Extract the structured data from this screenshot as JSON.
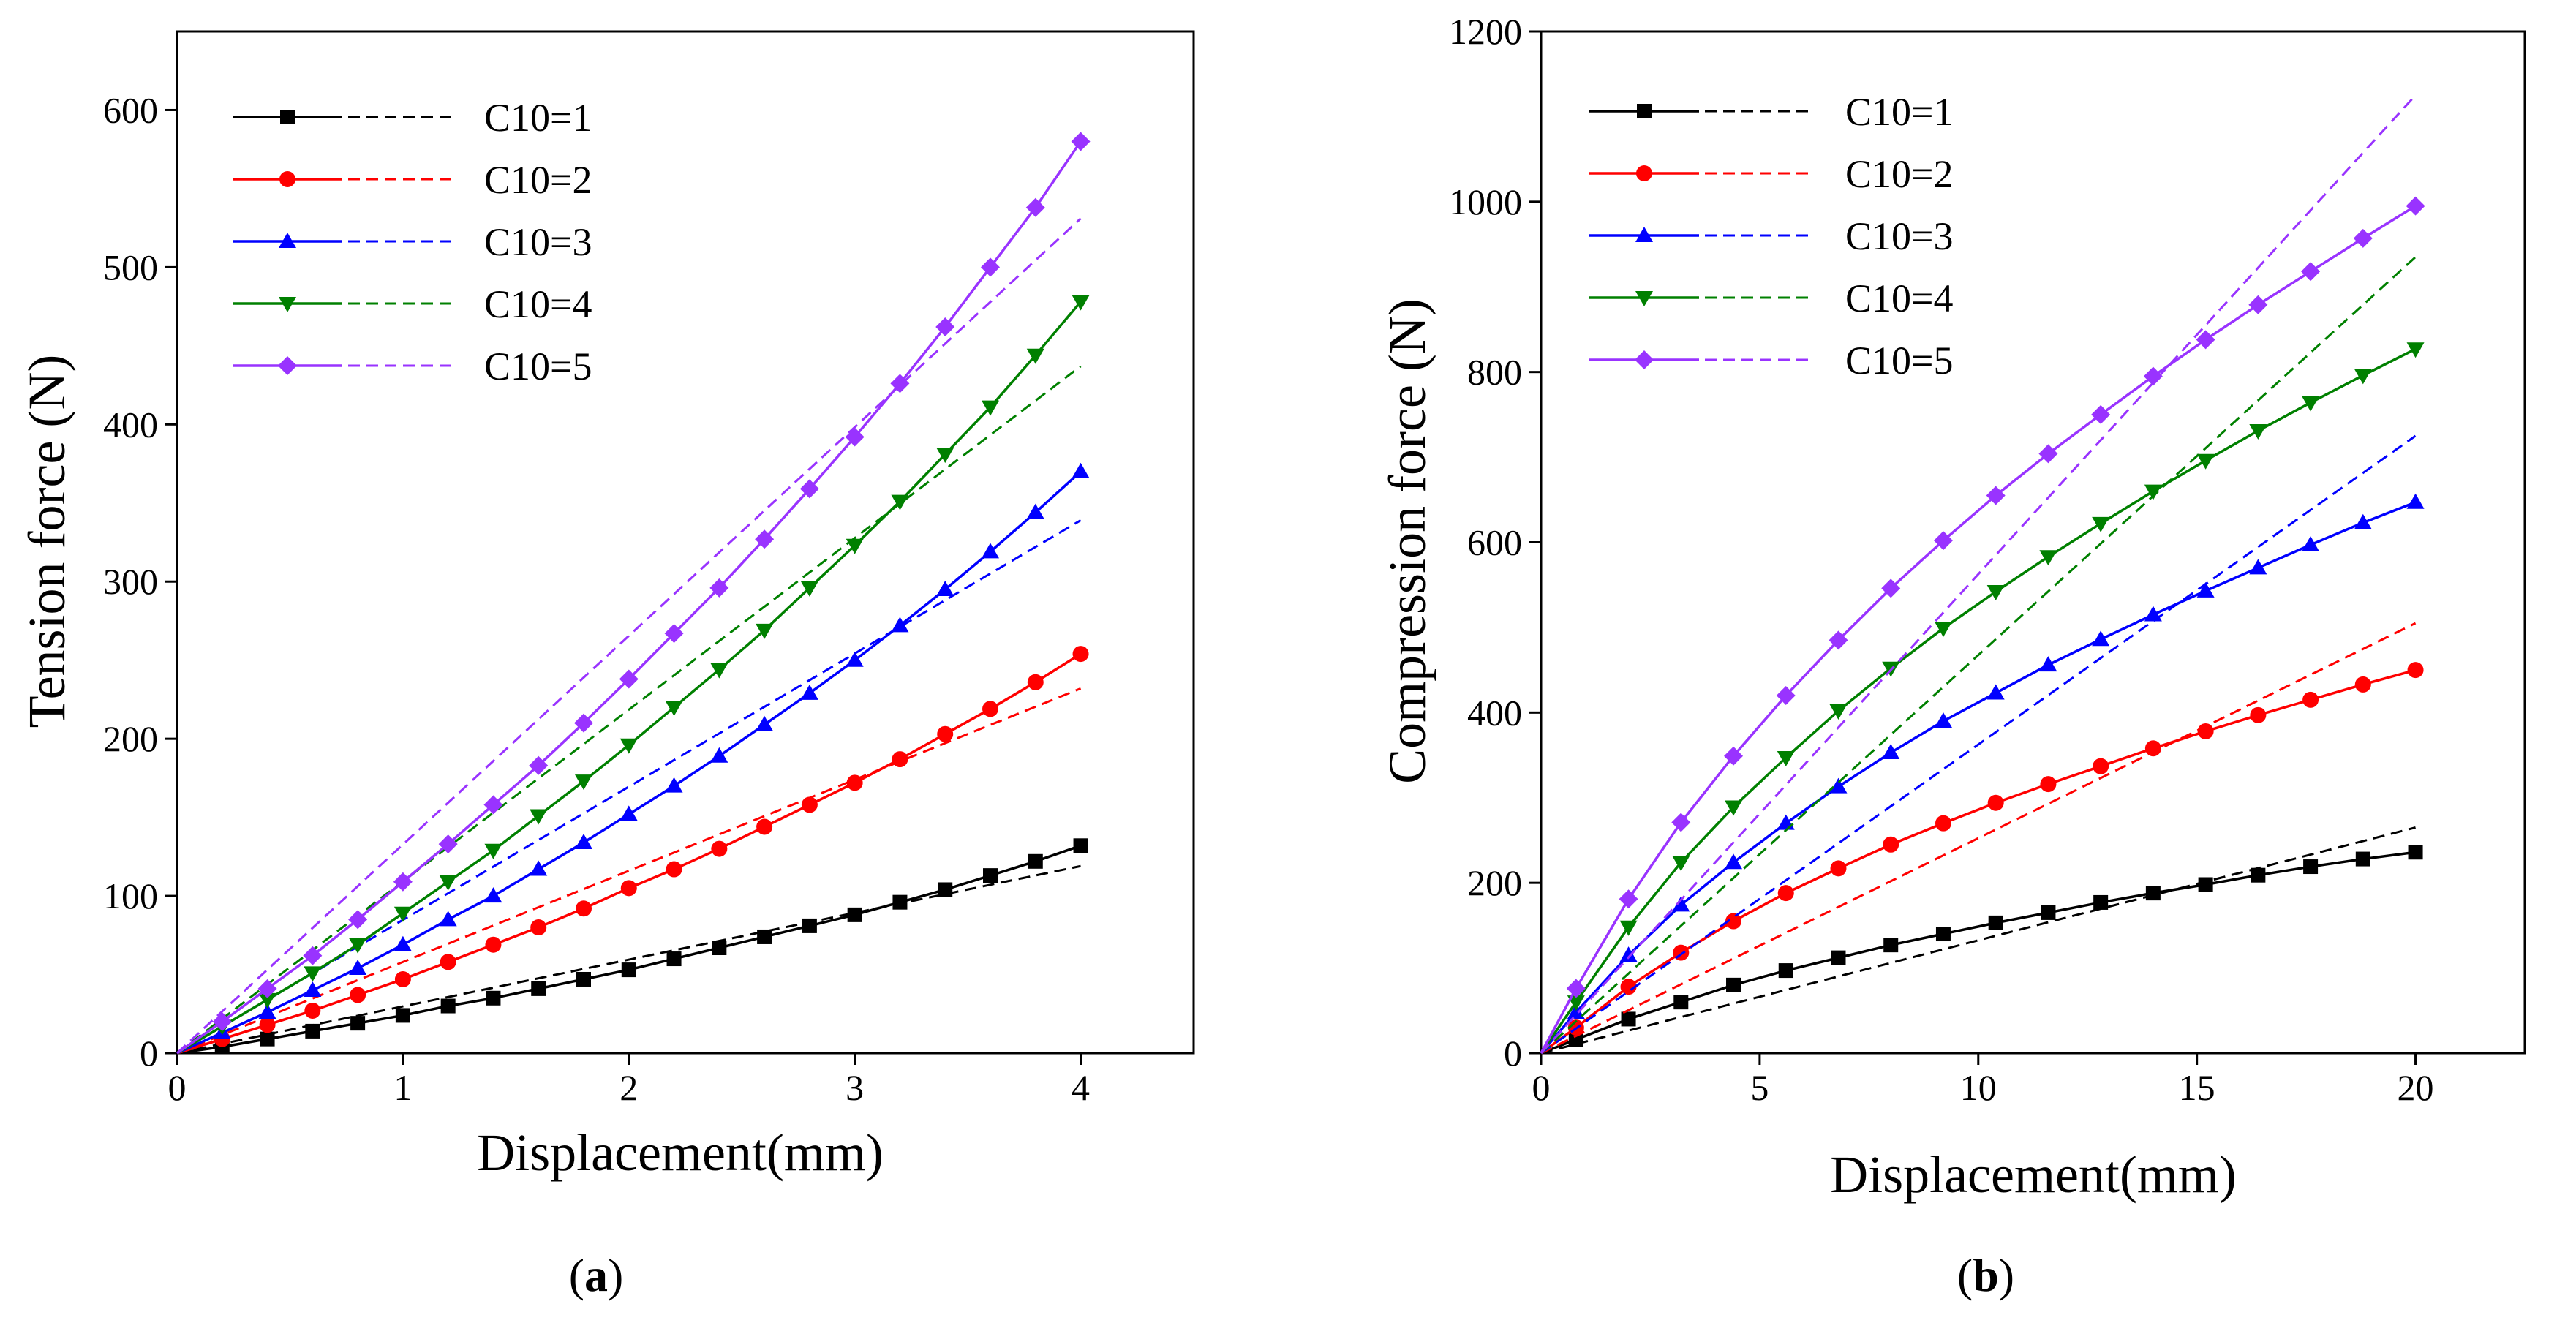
{
  "chart_data": [
    {
      "type": "line",
      "panel_label": "a",
      "xlabel": "Displacement(mm)",
      "ylabel": "Tension force (N)",
      "xlim": [
        0,
        4.5
      ],
      "ylim": [
        0,
        650
      ],
      "xticks": [
        0,
        1,
        2,
        3,
        4
      ],
      "yticks": [
        0,
        100,
        200,
        300,
        400,
        500,
        600
      ],
      "legend_position": "top-left",
      "series": [
        {
          "name": "C10=1",
          "color": "#000000",
          "marker": "square",
          "x": [
            0,
            0.2,
            0.4,
            0.6,
            0.8,
            1.0,
            1.2,
            1.4,
            1.6,
            1.8,
            2.0,
            2.2,
            2.4,
            2.6,
            2.8,
            3.0,
            3.2,
            3.4,
            3.6,
            3.8,
            4.0
          ],
          "y": [
            0,
            4,
            9,
            14,
            19,
            24,
            30,
            35,
            41,
            47,
            53,
            60,
            67,
            74,
            81,
            88,
            96,
            104,
            113,
            122,
            132
          ],
          "fit_y": [
            0,
            119
          ]
        },
        {
          "name": "C10=2",
          "color": "#ff0000",
          "marker": "circle",
          "x": [
            0,
            0.2,
            0.4,
            0.6,
            0.8,
            1.0,
            1.2,
            1.4,
            1.6,
            1.8,
            2.0,
            2.2,
            2.4,
            2.6,
            2.8,
            3.0,
            3.2,
            3.4,
            3.6,
            3.8,
            4.0
          ],
          "y": [
            0,
            9,
            18,
            27,
            37,
            47,
            58,
            69,
            80,
            92,
            105,
            117,
            130,
            144,
            158,
            172,
            187,
            203,
            219,
            236,
            254
          ],
          "fit_y": [
            0,
            232
          ]
        },
        {
          "name": "C10=3",
          "color": "#0000ff",
          "marker": "triangle-up",
          "x": [
            0,
            0.2,
            0.4,
            0.6,
            0.8,
            1.0,
            1.2,
            1.4,
            1.6,
            1.8,
            2.0,
            2.2,
            2.4,
            2.6,
            2.8,
            3.0,
            3.2,
            3.4,
            3.6,
            3.8,
            4.0
          ],
          "y": [
            0,
            13,
            26,
            40,
            54,
            69,
            85,
            100,
            117,
            134,
            152,
            170,
            189,
            209,
            229,
            250,
            272,
            295,
            319,
            344,
            370
          ],
          "fit_y": [
            0,
            339
          ]
        },
        {
          "name": "C10=4",
          "color": "#008000",
          "marker": "triangle-down",
          "x": [
            0,
            0.2,
            0.4,
            0.6,
            0.8,
            1.0,
            1.2,
            1.4,
            1.6,
            1.8,
            2.0,
            2.2,
            2.4,
            2.6,
            2.8,
            3.0,
            3.2,
            3.4,
            3.6,
            3.8,
            4.0
          ],
          "y": [
            0,
            17,
            34,
            51,
            69,
            89,
            109,
            129,
            151,
            173,
            196,
            220,
            244,
            269,
            296,
            323,
            351,
            381,
            411,
            444,
            478
          ],
          "fit_y": [
            0,
            437
          ]
        },
        {
          "name": "C10=5",
          "color": "#9933ff",
          "marker": "diamond",
          "x": [
            0,
            0.2,
            0.4,
            0.6,
            0.8,
            1.0,
            1.2,
            1.4,
            1.6,
            1.8,
            2.0,
            2.2,
            2.4,
            2.6,
            2.8,
            3.0,
            3.2,
            3.4,
            3.6,
            3.8,
            4.0
          ],
          "y": [
            0,
            20,
            41,
            62,
            85,
            109,
            133,
            158,
            183,
            210,
            238,
            267,
            296,
            327,
            359,
            392,
            426,
            462,
            500,
            538,
            580
          ],
          "fit_y": [
            0,
            531
          ]
        }
      ]
    },
    {
      "type": "line",
      "panel_label": "b",
      "xlabel": "Displacement(mm)",
      "ylabel": "Compression force (N)",
      "xlim": [
        0,
        22.5
      ],
      "ylim": [
        0,
        1200
      ],
      "xticks": [
        0,
        5,
        10,
        15,
        20
      ],
      "yticks": [
        0,
        200,
        400,
        600,
        800,
        1000,
        1200
      ],
      "legend_position": "top-left",
      "series": [
        {
          "name": "C10=1",
          "color": "#000000",
          "marker": "square",
          "x": [
            0,
            0.8,
            2.0,
            3.2,
            4.4,
            5.6,
            6.8,
            8.0,
            9.2,
            10.4,
            11.6,
            12.8,
            14.0,
            15.2,
            16.4,
            17.6,
            18.8,
            20.0
          ],
          "y": [
            0,
            16,
            40,
            60,
            80,
            97,
            112,
            127,
            140,
            153,
            165,
            177,
            188,
            198,
            209,
            219,
            228,
            236
          ],
          "fit_y": [
            0,
            265
          ]
        },
        {
          "name": "C10=2",
          "color": "#ff0000",
          "marker": "circle",
          "x": [
            0,
            0.8,
            2.0,
            3.2,
            4.4,
            5.6,
            6.8,
            8.0,
            9.2,
            10.4,
            11.6,
            12.8,
            14.0,
            15.2,
            16.4,
            17.6,
            18.8,
            20.0
          ],
          "y": [
            0,
            30,
            78,
            118,
            155,
            188,
            217,
            245,
            270,
            294,
            316,
            337,
            358,
            378,
            397,
            415,
            433,
            450
          ],
          "fit_y": [
            0,
            505
          ]
        },
        {
          "name": "C10=3",
          "color": "#0000ff",
          "marker": "triangle-up",
          "x": [
            0,
            0.8,
            2.0,
            3.2,
            4.4,
            5.6,
            6.8,
            8.0,
            9.2,
            10.4,
            11.6,
            12.8,
            14.0,
            15.2,
            16.4,
            17.6,
            18.8,
            20.0
          ],
          "y": [
            0,
            48,
            115,
            174,
            224,
            270,
            313,
            353,
            390,
            423,
            456,
            486,
            515,
            543,
            570,
            597,
            623,
            647
          ],
          "fit_y": [
            0,
            725
          ]
        },
        {
          "name": "C10=4",
          "color": "#008000",
          "marker": "triangle-down",
          "x": [
            0,
            0.8,
            2.0,
            3.2,
            4.4,
            5.6,
            6.8,
            8.0,
            9.2,
            10.4,
            11.6,
            12.8,
            14.0,
            15.2,
            16.4,
            17.6,
            18.8,
            20.0
          ],
          "y": [
            0,
            60,
            148,
            224,
            289,
            347,
            402,
            452,
            499,
            542,
            583,
            622,
            660,
            696,
            731,
            764,
            796,
            827
          ],
          "fit_y": [
            0,
            935
          ]
        },
        {
          "name": "C10=5",
          "color": "#9933ff",
          "marker": "diamond",
          "x": [
            0,
            0.8,
            2.0,
            3.2,
            4.4,
            5.6,
            6.8,
            8.0,
            9.2,
            10.4,
            11.6,
            12.8,
            14.0,
            15.2,
            16.4,
            17.6,
            18.8,
            20.0
          ],
          "y": [
            0,
            76,
            181,
            271,
            349,
            420,
            485,
            546,
            602,
            655,
            704,
            750,
            795,
            838,
            879,
            918,
            957,
            995
          ],
          "fit_y": [
            0,
            1125
          ]
        }
      ]
    }
  ]
}
